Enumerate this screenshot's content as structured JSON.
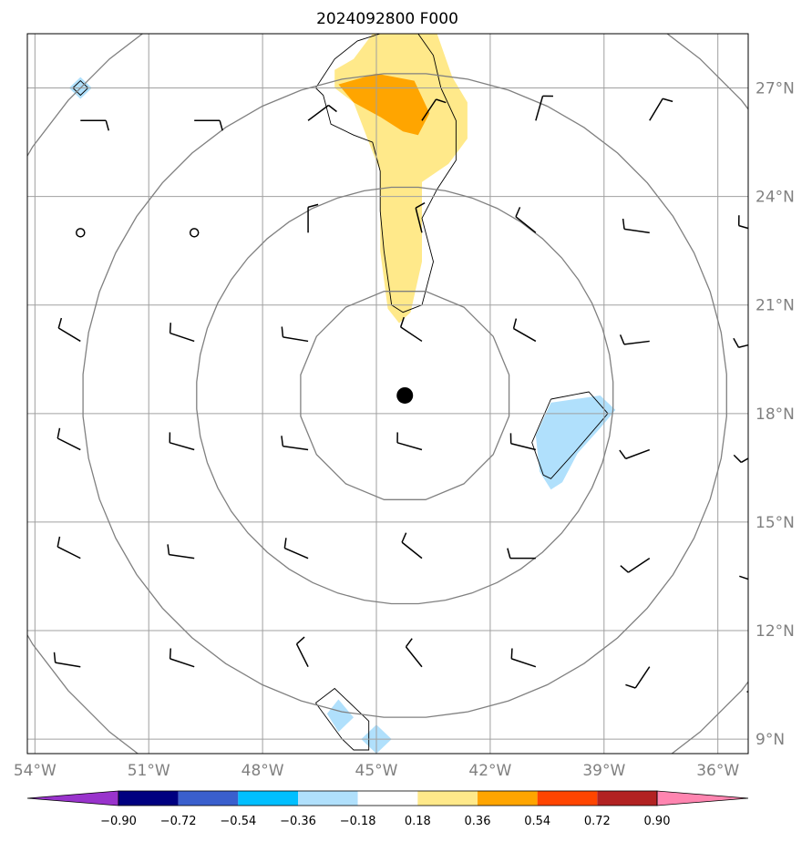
{
  "title": "2024092800 F000",
  "map": {
    "lon_range": [
      -54.2,
      -35.2
    ],
    "lat_range": [
      8.6,
      28.5
    ],
    "lon_ticks": [
      -54,
      -51,
      -48,
      -45,
      -42,
      -39,
      -36
    ],
    "lon_tick_labels": [
      "54°W",
      "51°W",
      "48°W",
      "45°W",
      "42°W",
      "39°W",
      "36°W"
    ],
    "lat_ticks": [
      9,
      12,
      15,
      18,
      21,
      24,
      27
    ],
    "lat_tick_labels": [
      "9°N",
      "12°N",
      "15°N",
      "18°N",
      "21°N",
      "24°N",
      "27°N"
    ],
    "center": {
      "lon": -44.25,
      "lat": 18.5
    },
    "range_ring_radii_deg": [
      2.8,
      5.5,
      8.5,
      11.8
    ],
    "grid": true,
    "colors": {
      "frame": "#000000",
      "grid": "#a0a0a0",
      "rings": "#808080",
      "contour": "#000000",
      "barb": "#000000",
      "center_marker": "#000000"
    }
  },
  "shaded_field": {
    "levels": [
      -0.9,
      -0.72,
      -0.54,
      -0.36,
      -0.18,
      0.18,
      0.36,
      0.54,
      0.72,
      0.9
    ],
    "level_labels": [
      "−0.90",
      "−0.72",
      "−0.54",
      "−0.36",
      "−0.18",
      "0.18",
      "0.36",
      "0.54",
      "0.72",
      "0.90"
    ],
    "colors": [
      "#9933cc",
      "#000080",
      "#3a5fcd",
      "#00bfff",
      "#b0e0fc",
      "#ffffff",
      "#ffe98a",
      "#ffa500",
      "#ff4500",
      "#b22222",
      "#ff85b0"
    ],
    "regions": [
      {
        "level": 0.18,
        "color": "#ffe98a",
        "points": [
          [
            -45.1,
            28.5
          ],
          [
            -43.4,
            28.5
          ],
          [
            -43.0,
            27.3
          ],
          [
            -42.6,
            26.6
          ],
          [
            -42.6,
            25.6
          ],
          [
            -43.1,
            24.9
          ],
          [
            -43.8,
            24.4
          ],
          [
            -43.8,
            22.2
          ],
          [
            -44.1,
            20.8
          ],
          [
            -44.4,
            20.5
          ],
          [
            -44.7,
            20.9
          ],
          [
            -44.9,
            22.5
          ],
          [
            -44.9,
            24.7
          ],
          [
            -45.2,
            25.5
          ],
          [
            -45.6,
            26.6
          ],
          [
            -46.1,
            27.0
          ],
          [
            -46.1,
            27.5
          ],
          [
            -45.6,
            27.8
          ]
        ]
      },
      {
        "level": 0.36,
        "color": "#ffa500",
        "points": [
          [
            -45.0,
            27.4
          ],
          [
            -44.0,
            27.2
          ],
          [
            -43.6,
            26.3
          ],
          [
            -43.9,
            25.7
          ],
          [
            -44.3,
            25.8
          ],
          [
            -44.9,
            26.2
          ],
          [
            -45.6,
            26.6
          ],
          [
            -46.0,
            27.1
          ]
        ]
      },
      {
        "level": -0.18,
        "color": "#b0e0fc",
        "points": [
          [
            -40.4,
            18.3
          ],
          [
            -39.1,
            18.5
          ],
          [
            -38.7,
            18.1
          ],
          [
            -39.1,
            17.6
          ],
          [
            -39.7,
            16.9
          ],
          [
            -40.1,
            16.1
          ],
          [
            -40.4,
            15.9
          ],
          [
            -40.7,
            16.4
          ],
          [
            -40.8,
            17.4
          ]
        ]
      },
      {
        "level": -0.18,
        "color": "#b0e0fc",
        "points": [
          [
            -46.3,
            9.7
          ],
          [
            -46.0,
            10.1
          ],
          [
            -45.6,
            9.6
          ],
          [
            -46.0,
            9.2
          ]
        ]
      },
      {
        "level": -0.18,
        "color": "#b0e0fc",
        "points": [
          [
            -45.4,
            9.0
          ],
          [
            -45.0,
            9.4
          ],
          [
            -44.6,
            9.0
          ],
          [
            -45.0,
            8.6
          ]
        ]
      },
      {
        "level": -0.18,
        "color": "#b0e0fc",
        "points": [
          [
            -53.1,
            27.0
          ],
          [
            -52.8,
            27.3
          ],
          [
            -52.5,
            27.0
          ],
          [
            -52.8,
            26.7
          ]
        ]
      }
    ],
    "contours": [
      [
        [
          -44.9,
          28.5
        ],
        [
          -43.9,
          28.5
        ],
        [
          -43.5,
          27.9
        ],
        [
          -43.3,
          27.0
        ],
        [
          -42.9,
          26.1
        ],
        [
          -42.9,
          25.0
        ],
        [
          -43.4,
          24.2
        ],
        [
          -43.8,
          23.4
        ],
        [
          -43.5,
          22.2
        ],
        [
          -43.8,
          21.0
        ],
        [
          -44.3,
          20.8
        ],
        [
          -44.6,
          21.0
        ],
        [
          -44.8,
          22.5
        ],
        [
          -44.9,
          23.6
        ],
        [
          -44.9,
          24.7
        ],
        [
          -45.1,
          25.5
        ],
        [
          -45.6,
          25.7
        ],
        [
          -46.2,
          26.0
        ],
        [
          -46.4,
          26.8
        ],
        [
          -46.6,
          27.0
        ],
        [
          -46.1,
          27.8
        ],
        [
          -45.5,
          28.3
        ],
        [
          -44.9,
          28.5
        ]
      ],
      [
        [
          -40.4,
          18.4
        ],
        [
          -39.4,
          18.6
        ],
        [
          -38.9,
          18.0
        ],
        [
          -39.8,
          16.9
        ],
        [
          -40.4,
          16.2
        ],
        [
          -40.6,
          16.3
        ],
        [
          -40.9,
          17.2
        ],
        [
          -40.4,
          18.4
        ]
      ],
      [
        [
          -46.6,
          10.0
        ],
        [
          -46.1,
          10.4
        ],
        [
          -45.2,
          9.5
        ],
        [
          -45.2,
          8.7
        ],
        [
          -45.6,
          8.7
        ],
        [
          -45.9,
          9.0
        ],
        [
          -46.6,
          10.0
        ]
      ],
      [
        [
          -53.0,
          27.0
        ],
        [
          -52.8,
          27.2
        ],
        [
          -52.6,
          27.0
        ],
        [
          -52.8,
          26.8
        ],
        [
          -53.0,
          27.0
        ]
      ]
    ]
  },
  "wind_barbs": [
    {
      "lon": -52.8,
      "lat": 26.1,
      "u": -4,
      "v": 0
    },
    {
      "lon": -49.8,
      "lat": 26.1,
      "u": -4,
      "v": 0
    },
    {
      "lon": -46.8,
      "lat": 26.1,
      "u": -4,
      "v": -3
    },
    {
      "lon": -43.8,
      "lat": 26.1,
      "u": -4,
      "v": -6
    },
    {
      "lon": -40.8,
      "lat": 26.1,
      "u": -2,
      "v": -7
    },
    {
      "lon": -37.8,
      "lat": 26.1,
      "u": -3,
      "v": -5
    },
    {
      "lon": -34.8,
      "lat": 26.1,
      "u": 1,
      "v": -8
    },
    {
      "lon": -52.8,
      "lat": 23.0,
      "u": 0,
      "v": 0
    },
    {
      "lon": -49.8,
      "lat": 23.0,
      "u": 0,
      "v": 0
    },
    {
      "lon": -46.8,
      "lat": 23.0,
      "u": 0,
      "v": -8
    },
    {
      "lon": -43.8,
      "lat": 23.0,
      "u": 2,
      "v": -8
    },
    {
      "lon": -40.8,
      "lat": 23.0,
      "u": 5,
      "v": -4
    },
    {
      "lon": -37.8,
      "lat": 23.0,
      "u": 7,
      "v": -1
    },
    {
      "lon": -34.8,
      "lat": 23.0,
      "u": 7,
      "v": -2
    },
    {
      "lon": -52.8,
      "lat": 20.0,
      "u": 5,
      "v": -3
    },
    {
      "lon": -49.8,
      "lat": 20.0,
      "u": 6,
      "v": -2
    },
    {
      "lon": -46.8,
      "lat": 20.0,
      "u": 6,
      "v": -1
    },
    {
      "lon": -43.8,
      "lat": 20.0,
      "u": 6,
      "v": -4
    },
    {
      "lon": -40.8,
      "lat": 20.0,
      "u": 7,
      "v": -4
    },
    {
      "lon": -37.8,
      "lat": 20.0,
      "u": 8,
      "v": 1
    },
    {
      "lon": -34.8,
      "lat": 20.0,
      "u": 8,
      "v": 2
    },
    {
      "lon": -52.8,
      "lat": 17.0,
      "u": 6,
      "v": -3
    },
    {
      "lon": -49.8,
      "lat": 17.0,
      "u": 7,
      "v": -2
    },
    {
      "lon": -46.8,
      "lat": 17.0,
      "u": 7,
      "v": -1
    },
    {
      "lon": -43.8,
      "lat": 17.0,
      "u": 7,
      "v": -2
    },
    {
      "lon": -40.8,
      "lat": 17.0,
      "u": 8,
      "v": -2
    },
    {
      "lon": -37.8,
      "lat": 17.0,
      "u": 8,
      "v": 3
    },
    {
      "lon": -34.8,
      "lat": 17.0,
      "u": 7,
      "v": 4
    },
    {
      "lon": -52.8,
      "lat": 14.0,
      "u": 6,
      "v": -3
    },
    {
      "lon": -49.8,
      "lat": 14.0,
      "u": 7,
      "v": -1
    },
    {
      "lon": -46.8,
      "lat": 14.0,
      "u": 7,
      "v": -3
    },
    {
      "lon": -43.8,
      "lat": 14.0,
      "u": 5,
      "v": -4
    },
    {
      "lon": -40.8,
      "lat": 14.0,
      "u": 8,
      "v": 0
    },
    {
      "lon": -37.8,
      "lat": 14.0,
      "u": 6,
      "v": 4
    },
    {
      "lon": -34.8,
      "lat": 14.0,
      "u": 4,
      "v": 6
    },
    {
      "lon": -52.8,
      "lat": 11.0,
      "u": 6,
      "v": -1
    },
    {
      "lon": -49.8,
      "lat": 11.0,
      "u": 6,
      "v": -2
    },
    {
      "lon": -46.8,
      "lat": 11.0,
      "u": 3,
      "v": -6
    },
    {
      "lon": -43.8,
      "lat": 11.0,
      "u": 4,
      "v": -5
    },
    {
      "lon": -40.8,
      "lat": 11.0,
      "u": 6,
      "v": -2
    },
    {
      "lon": -37.8,
      "lat": 11.0,
      "u": 4,
      "v": 6
    },
    {
      "lon": -34.8,
      "lat": 11.0,
      "u": 2,
      "v": 8
    }
  ]
}
